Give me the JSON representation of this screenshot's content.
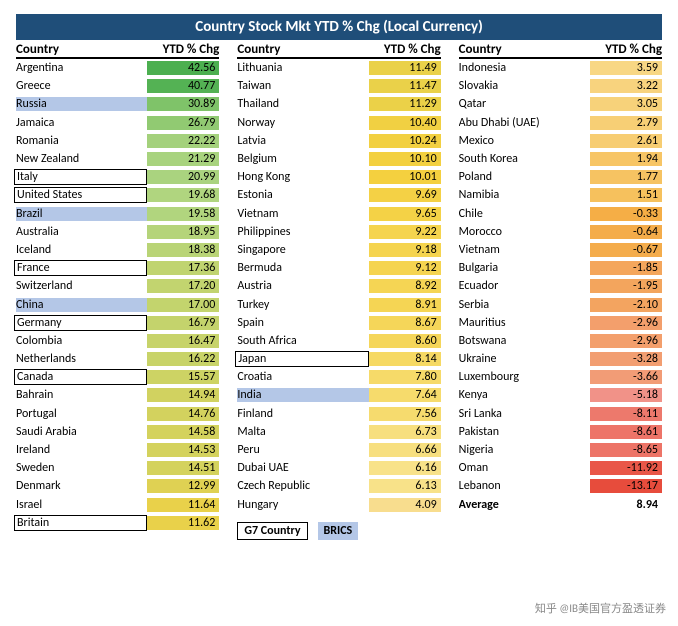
{
  "title": "Country Stock Mkt YTD % Chg (Local Currency)",
  "headers": {
    "country": "Country",
    "ytd": "YTD % Chg"
  },
  "legend": {
    "g7": "G7 Country",
    "brics": "BRICS"
  },
  "average": {
    "label": "Average",
    "value": "8.94"
  },
  "watermark": "知乎 @IB美国官方盈透证券",
  "style": {
    "title_bg": "#1f4e79",
    "title_color": "#ffffff",
    "brics_bg": "#b4c7e7",
    "g7_border": "#000000",
    "font_family": "Calibri",
    "title_fontsize": 15,
    "body_fontsize": 12,
    "row_height": 18.2,
    "value_col_width": 68,
    "color_scale": {
      "min_value": -13.17,
      "max_value": 42.56,
      "stops": [
        [
          -13.17,
          "#e74c3c"
        ],
        [
          -5,
          "#f1948a"
        ],
        [
          0,
          "#f5b041"
        ],
        [
          5,
          "#f9e79f"
        ],
        [
          10,
          "#f4d03f"
        ],
        [
          20,
          "#aed581"
        ],
        [
          42.56,
          "#4caf50"
        ]
      ]
    },
    "value_decimals": 2
  },
  "columns": [
    [
      {
        "country": "Argentina",
        "ytd": 42.56
      },
      {
        "country": "Greece",
        "ytd": 40.77
      },
      {
        "country": "Russia",
        "ytd": 30.89,
        "brics": true
      },
      {
        "country": "Jamaica",
        "ytd": 26.79
      },
      {
        "country": "Romania",
        "ytd": 22.22
      },
      {
        "country": "New Zealand",
        "ytd": 21.29
      },
      {
        "country": "Italy",
        "ytd": 20.99,
        "g7": true
      },
      {
        "country": "United States",
        "ytd": 19.68,
        "g7": true
      },
      {
        "country": "Brazil",
        "ytd": 19.58,
        "brics": true
      },
      {
        "country": "Australia",
        "ytd": 18.95
      },
      {
        "country": "Iceland",
        "ytd": 18.38
      },
      {
        "country": "France",
        "ytd": 17.36,
        "g7": true
      },
      {
        "country": "Switzerland",
        "ytd": 17.2
      },
      {
        "country": "China",
        "ytd": 17.0,
        "brics": true
      },
      {
        "country": "Germany",
        "ytd": 16.79,
        "g7": true
      },
      {
        "country": "Colombia",
        "ytd": 16.47
      },
      {
        "country": "Netherlands",
        "ytd": 16.22
      },
      {
        "country": "Canada",
        "ytd": 15.57,
        "g7": true
      },
      {
        "country": "Bahrain",
        "ytd": 14.94
      },
      {
        "country": "Portugal",
        "ytd": 14.76
      },
      {
        "country": "Saudi Arabia",
        "ytd": 14.58
      },
      {
        "country": "Ireland",
        "ytd": 14.53
      },
      {
        "country": "Sweden",
        "ytd": 14.51
      },
      {
        "country": "Denmark",
        "ytd": 12.99
      },
      {
        "country": "Israel",
        "ytd": 11.64
      },
      {
        "country": "Britain",
        "ytd": 11.62,
        "g7": true
      }
    ],
    [
      {
        "country": "Lithuania",
        "ytd": 11.49
      },
      {
        "country": "Taiwan",
        "ytd": 11.47
      },
      {
        "country": "Thailand",
        "ytd": 11.29
      },
      {
        "country": "Norway",
        "ytd": 10.4
      },
      {
        "country": "Latvia",
        "ytd": 10.24
      },
      {
        "country": "Belgium",
        "ytd": 10.1
      },
      {
        "country": "Hong Kong",
        "ytd": 10.01
      },
      {
        "country": "Estonia",
        "ytd": 9.69
      },
      {
        "country": "Vietnam",
        "ytd": 9.65
      },
      {
        "country": "Philippines",
        "ytd": 9.22
      },
      {
        "country": "Singapore",
        "ytd": 9.18
      },
      {
        "country": "Bermuda",
        "ytd": 9.12
      },
      {
        "country": "Austria",
        "ytd": 8.92
      },
      {
        "country": "Turkey",
        "ytd": 8.91
      },
      {
        "country": "Spain",
        "ytd": 8.67
      },
      {
        "country": "South Africa",
        "ytd": 8.6
      },
      {
        "country": "Japan",
        "ytd": 8.14,
        "g7": true
      },
      {
        "country": "Croatia",
        "ytd": 7.8
      },
      {
        "country": "India",
        "ytd": 7.64,
        "brics": true
      },
      {
        "country": "Finland",
        "ytd": 7.56
      },
      {
        "country": "Malta",
        "ytd": 6.73
      },
      {
        "country": "Peru",
        "ytd": 6.66
      },
      {
        "country": "Dubai UAE",
        "ytd": 6.16
      },
      {
        "country": "Czech Republic",
        "ytd": 6.13
      },
      {
        "country": "Hungary",
        "ytd": 4.09
      }
    ],
    [
      {
        "country": "Indonesia",
        "ytd": 3.59
      },
      {
        "country": "Slovakia",
        "ytd": 3.22
      },
      {
        "country": "Qatar",
        "ytd": 3.05
      },
      {
        "country": "Abu Dhabi (UAE)",
        "ytd": 2.79
      },
      {
        "country": "Mexico",
        "ytd": 2.61
      },
      {
        "country": "South Korea",
        "ytd": 1.94
      },
      {
        "country": "Poland",
        "ytd": 1.77
      },
      {
        "country": "Namibia",
        "ytd": 1.51
      },
      {
        "country": "Chile",
        "ytd": -0.33
      },
      {
        "country": "Morocco",
        "ytd": -0.64
      },
      {
        "country": "Vietnam",
        "ytd": -0.67
      },
      {
        "country": "Bulgaria",
        "ytd": -1.85
      },
      {
        "country": "Ecuador",
        "ytd": -1.95
      },
      {
        "country": "Serbia",
        "ytd": -2.1
      },
      {
        "country": "Mauritius",
        "ytd": -2.96
      },
      {
        "country": "Botswana",
        "ytd": -2.96
      },
      {
        "country": "Ukraine",
        "ytd": -3.28
      },
      {
        "country": "Luxembourg",
        "ytd": -3.66
      },
      {
        "country": "Kenya",
        "ytd": -5.18
      },
      {
        "country": "Sri Lanka",
        "ytd": -8.11
      },
      {
        "country": "Pakistan",
        "ytd": -8.61
      },
      {
        "country": "Nigeria",
        "ytd": -8.65
      },
      {
        "country": "Oman",
        "ytd": -11.92
      },
      {
        "country": "Lebanon",
        "ytd": -13.17
      }
    ]
  ]
}
